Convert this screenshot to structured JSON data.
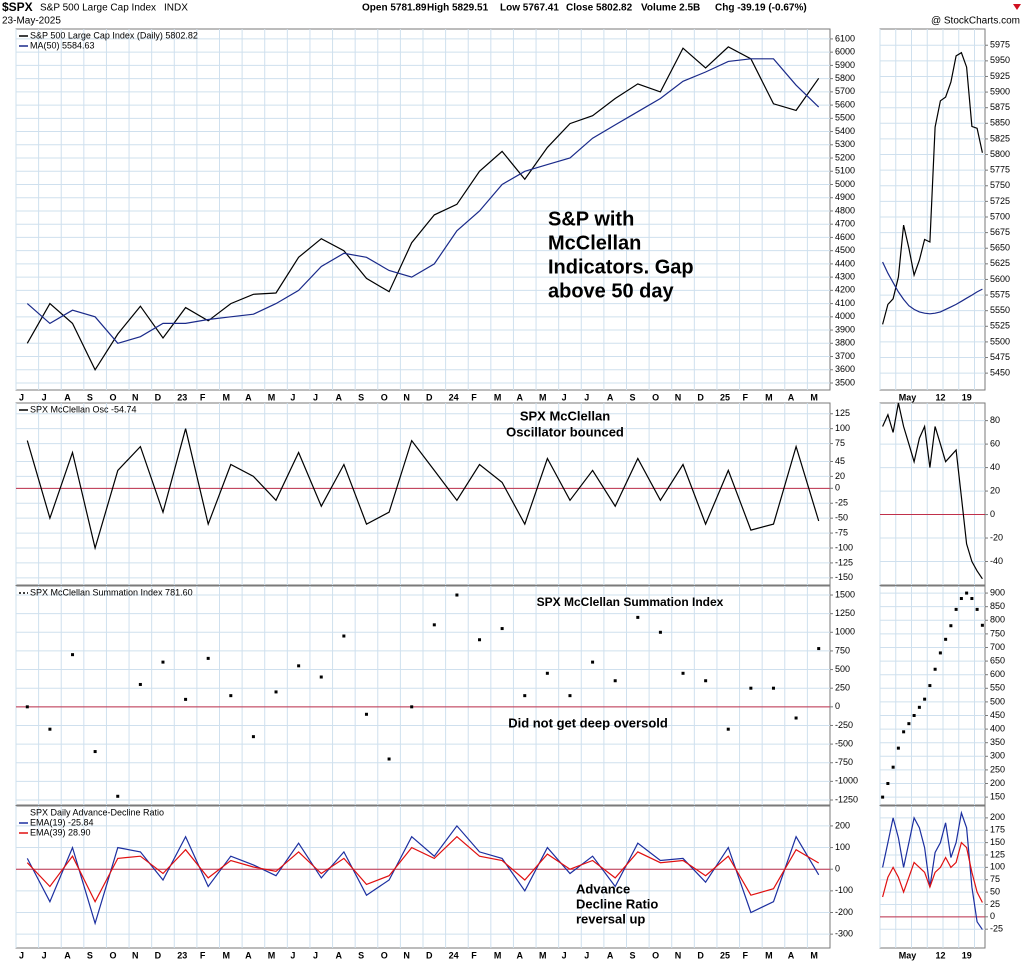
{
  "header": {
    "symbol": "$SPX",
    "name": "S&P 500 Large Cap Index",
    "exchange": "INDX",
    "date": "23-May-2025",
    "quote": [
      "Open 5781.89",
      "High 5829.51",
      "Low 5767.41",
      "Close 5802.82",
      "Volume 2.5B",
      "Chg -39.19 (-0.67%)"
    ],
    "source": "@ StockCharts.com"
  },
  "chart_data": [
    {
      "type": "line",
      "categories": [
        "J",
        "J",
        "A",
        "S",
        "O",
        "N",
        "D",
        "23",
        "F",
        "M",
        "A",
        "M",
        "J",
        "J",
        "A",
        "S",
        "O",
        "N",
        "D",
        "24",
        "F",
        "M",
        "A",
        "M",
        "J",
        "J",
        "A",
        "S",
        "O",
        "N",
        "D",
        "25",
        "F",
        "M",
        "A",
        "M"
      ],
      "series": [
        {
          "name": "S&P 500 Large Cap Index (Daily) 5802.82",
          "color": "#000000",
          "values": [
            3800,
            4100,
            3950,
            3600,
            3870,
            4080,
            3840,
            4070,
            3970,
            4100,
            4170,
            4180,
            4450,
            4590,
            4500,
            4290,
            4190,
            4560,
            4770,
            4850,
            5100,
            5250,
            5040,
            5280,
            5460,
            5520,
            5650,
            5760,
            5700,
            6030,
            5880,
            6040,
            5950,
            5610,
            5560,
            5802.82
          ]
        },
        {
          "name": "MA(50) 5584.63",
          "color": "#1a2a8a",
          "values": [
            4100,
            3950,
            4050,
            4000,
            3800,
            3850,
            3950,
            3950,
            3980,
            4000,
            4020,
            4100,
            4200,
            4380,
            4480,
            4450,
            4350,
            4300,
            4400,
            4650,
            4800,
            5000,
            5100,
            5150,
            5200,
            5350,
            5450,
            5550,
            5650,
            5780,
            5850,
            5930,
            5950,
            5950,
            5750,
            5584.63
          ]
        }
      ],
      "ylim": [
        3447,
        6175
      ],
      "yticks": [
        3500,
        3600,
        3700,
        3800,
        3900,
        4000,
        4100,
        4200,
        4300,
        4400,
        4500,
        4600,
        4700,
        4800,
        4900,
        5000,
        5100,
        5200,
        5300,
        5400,
        5500,
        5600,
        5700,
        5800,
        5900,
        6000,
        6100
      ],
      "grid": true,
      "annotations": [
        {
          "lines": [
            "S&P with",
            "McClellan",
            "Indicators.  Gap",
            "above 50 day"
          ],
          "color": "#1a2ad0"
        }
      ]
    },
    {
      "type": "line",
      "series": [
        {
          "name": "SPX McClellan Osc -54.74",
          "color": "#000000",
          "values": [
            80,
            -50,
            60,
            -100,
            30,
            70,
            -40,
            100,
            -60,
            40,
            20,
            -20,
            60,
            -30,
            40,
            -60,
            -40,
            80,
            30,
            -20,
            40,
            10,
            -60,
            50,
            -20,
            30,
            -30,
            50,
            -20,
            40,
            -60,
            30,
            -70,
            -60,
            70,
            -54.74
          ]
        }
      ],
      "ylim": [
        -162,
        143
      ],
      "yticks": [
        -150,
        -125,
        -100,
        -75,
        -50,
        -25,
        0,
        20,
        45,
        75,
        100,
        125
      ],
      "grid": true,
      "hline": {
        "value": 0,
        "color": "#c0304a"
      },
      "annotations": [
        {
          "lines": [
            "SPX McClellan",
            "Oscillator bounced"
          ],
          "color": "#dd1010"
        }
      ]
    },
    {
      "type": "line",
      "series": [
        {
          "name": "SPX McClellan Summation Index 781.60",
          "color": "#000000",
          "style": "dots",
          "values": [
            0,
            -300,
            700,
            -600,
            -1200,
            300,
            600,
            100,
            650,
            150,
            -400,
            200,
            550,
            400,
            950,
            -100,
            -700,
            0,
            1100,
            1500,
            900,
            1050,
            150,
            450,
            150,
            600,
            350,
            1200,
            1000,
            450,
            350,
            -300,
            250,
            250,
            -150,
            781.6
          ]
        }
      ],
      "ylim": [
        -1317,
        1621
      ],
      "yticks": [
        -1250,
        -1000,
        -750,
        -500,
        -250,
        0,
        250,
        500,
        750,
        1000,
        1250,
        1500
      ],
      "grid": true,
      "hline": {
        "value": 0,
        "color": "#c0304a"
      },
      "annotations": [
        {
          "lines": [
            "SPX McClellan Summation Index"
          ],
          "color": "#1a2ad0"
        },
        {
          "lines": [
            "Did not get deep oversold"
          ],
          "color": "#dd1010"
        }
      ]
    },
    {
      "type": "line",
      "title": "SPX Daily Advance-Decline Ratio",
      "categories": [
        "J",
        "J",
        "A",
        "S",
        "O",
        "N",
        "D",
        "23",
        "F",
        "M",
        "A",
        "M",
        "J",
        "J",
        "A",
        "S",
        "O",
        "N",
        "D",
        "24",
        "F",
        "M",
        "A",
        "M",
        "J",
        "J",
        "A",
        "S",
        "O",
        "N",
        "D",
        "25",
        "F",
        "M",
        "A",
        "M"
      ],
      "series": [
        {
          "name": "EMA(19) -25.84",
          "color": "#1c2fa0",
          "values": [
            50,
            -150,
            100,
            -250,
            100,
            80,
            -50,
            150,
            -80,
            60,
            20,
            -30,
            120,
            -40,
            80,
            -120,
            -50,
            150,
            60,
            200,
            80,
            50,
            -100,
            100,
            -20,
            60,
            -80,
            120,
            40,
            50,
            -60,
            100,
            -200,
            -150,
            150,
            -25.84
          ]
        },
        {
          "name": "EMA(39) 28.90",
          "color": "#e01010",
          "values": [
            30,
            -80,
            60,
            -150,
            50,
            60,
            -20,
            90,
            -40,
            40,
            10,
            -10,
            80,
            -20,
            50,
            -70,
            -30,
            100,
            50,
            150,
            60,
            40,
            -50,
            70,
            0,
            40,
            -40,
            80,
            30,
            40,
            -30,
            60,
            -120,
            -90,
            90,
            28.9
          ]
        }
      ],
      "ylim": [
        -364,
        292
      ],
      "yticks": [
        -300,
        -200,
        -100,
        0,
        100,
        200
      ],
      "grid": true,
      "hline": {
        "value": 0,
        "color": "#c0304a"
      },
      "annotations": [
        {
          "lines": [
            "Advance",
            "Decline Ratio",
            "reversal up"
          ],
          "color": "#1a2ad0"
        }
      ]
    },
    {
      "type": "line",
      "categories": [
        null,
        null,
        null,
        "May",
        null,
        null,
        null,
        null,
        null,
        null,
        "12",
        null,
        null,
        null,
        null,
        "19",
        null,
        null,
        null,
        null
      ],
      "series": [
        {
          "color": "#000000",
          "values": [
            5528,
            5560,
            5569,
            5604,
            5687,
            5650,
            5607,
            5631,
            5664,
            5660,
            5844,
            5886,
            5892,
            5916,
            5958,
            5963,
            5940,
            5845,
            5842,
            5802.82
          ]
        },
        {
          "color": "#1a2a8a",
          "values": [
            5628,
            5610,
            5595,
            5580,
            5568,
            5558,
            5552,
            5548,
            5546,
            5545,
            5546,
            5548,
            5552,
            5556,
            5560,
            5565,
            5570,
            5575,
            5580,
            5584.63
          ]
        }
      ],
      "ylim": [
        5423,
        6001
      ],
      "yticks": [
        5450,
        5475,
        5500,
        5525,
        5550,
        5575,
        5600,
        5625,
        5650,
        5675,
        5700,
        5725,
        5750,
        5775,
        5800,
        5825,
        5850,
        5875,
        5900,
        5925,
        5950,
        5975
      ],
      "grid": true
    },
    {
      "type": "line",
      "series": [
        {
          "color": "#000000",
          "values": [
            75,
            85,
            70,
            95,
            75,
            60,
            45,
            65,
            75,
            40,
            75,
            60,
            45,
            50,
            55,
            15,
            -25,
            -40,
            -48,
            -54.74
          ]
        }
      ],
      "ylim": [
        -60,
        95
      ],
      "yticks": [
        -40,
        -20,
        0,
        20,
        40,
        60,
        80
      ],
      "grid": true,
      "hline": {
        "value": 0,
        "color": "#c0304a"
      }
    },
    {
      "type": "line",
      "series": [
        {
          "color": "#000000",
          "style": "dots",
          "values": [
            150,
            200,
            260,
            330,
            390,
            420,
            450,
            480,
            510,
            560,
            620,
            680,
            730,
            780,
            840,
            880,
            900,
            880,
            840,
            781.6
          ]
        }
      ],
      "ylim": [
        121,
        926
      ],
      "yticks": [
        150,
        200,
        250,
        300,
        350,
        400,
        450,
        500,
        550,
        600,
        650,
        700,
        750,
        800,
        850,
        900
      ],
      "grid": true
    },
    {
      "type": "line",
      "categories": [
        null,
        null,
        null,
        "May",
        null,
        null,
        null,
        null,
        null,
        null,
        "12",
        null,
        null,
        null,
        null,
        "19",
        null,
        null,
        null,
        null
      ],
      "series": [
        {
          "color": "#1c2fa0",
          "values": [
            100,
            150,
            200,
            160,
            100,
            150,
            200,
            180,
            140,
            60,
            130,
            150,
            190,
            120,
            150,
            210,
            180,
            60,
            -10,
            -25.84
          ]
        },
        {
          "color": "#e01010",
          "values": [
            40,
            80,
            100,
            80,
            50,
            80,
            110,
            100,
            90,
            60,
            90,
            100,
            120,
            100,
            110,
            150,
            140,
            90,
            50,
            28.9
          ]
        }
      ],
      "ylim": [
        -63,
        224
      ],
      "yticks": [
        -25,
        0,
        25,
        50,
        75,
        100,
        125,
        150,
        175,
        200
      ],
      "grid": true,
      "hline": {
        "value": 0,
        "color": "#c0304a"
      }
    }
  ]
}
